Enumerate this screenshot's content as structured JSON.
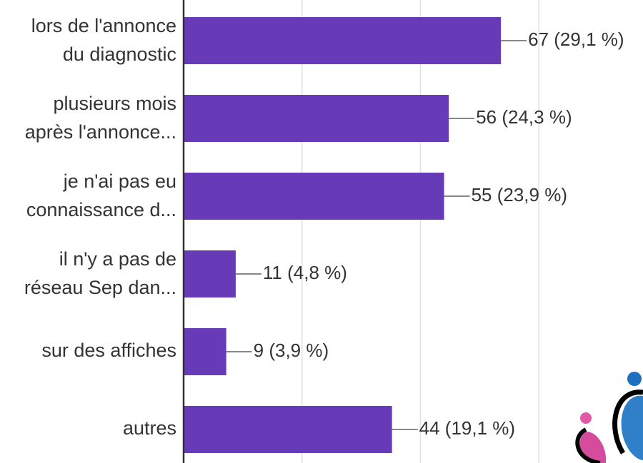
{
  "chart_data": {
    "type": "bar",
    "orientation": "horizontal",
    "categories": [
      [
        "lors de l'annonce",
        "du diagnostic"
      ],
      [
        "plusieurs mois",
        "après l'annonce..."
      ],
      [
        "je n'ai pas eu",
        "connaissance d..."
      ],
      [
        "il n'y a pas de",
        "réseau Sep dan..."
      ],
      [
        "sur des affiches"
      ],
      [
        "autres"
      ]
    ],
    "values": [
      67,
      56,
      55,
      11,
      9,
      44
    ],
    "value_labels": [
      "67 (29,1 %)",
      "56 (24,3 %)",
      "55 (23,9 %)",
      "11 (4,8 %)",
      "9 (3,9 %)",
      "44 (19,1 %)"
    ],
    "color": "#673ab7",
    "xlim": [
      0,
      97
    ],
    "xticks": [
      0,
      25,
      50,
      75
    ],
    "grid": true
  }
}
